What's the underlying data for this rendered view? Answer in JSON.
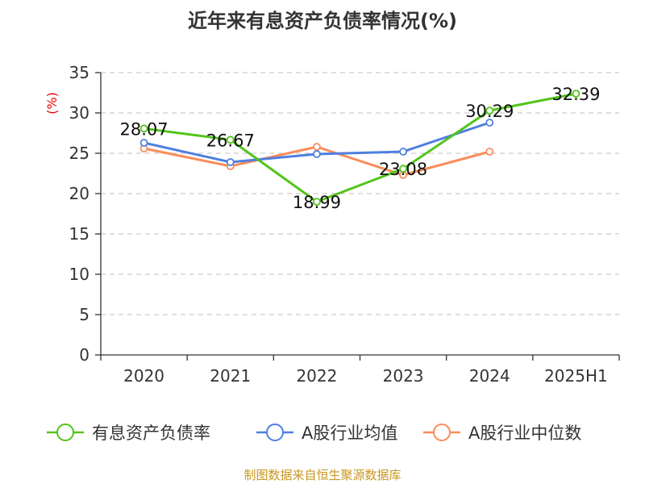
{
  "chart_data": {
    "type": "line",
    "title": "近年来有息资产负债率情况(%)",
    "ylabel": "(%)",
    "categories": [
      "2020",
      "2021",
      "2022",
      "2023",
      "2024",
      "2025H1"
    ],
    "ylim": [
      0,
      35
    ],
    "yticks": [
      0,
      5,
      10,
      15,
      20,
      25,
      30,
      35
    ],
    "grid": true,
    "legend_position": "bottom",
    "series": [
      {
        "name": "有息资产负债率",
        "color": "#52c41a",
        "values": [
          28.07,
          26.67,
          18.99,
          23.08,
          30.29,
          32.39
        ],
        "labels": [
          "28.07",
          "26.67",
          "18.99",
          "23.08",
          "30.29",
          "32.39"
        ]
      },
      {
        "name": "A股行业均值",
        "color": "#4f7fe0",
        "values": [
          26.3,
          23.9,
          24.9,
          25.2,
          28.8,
          null
        ]
      },
      {
        "name": "A股行业中位数",
        "color": "#fa8c5a",
        "values": [
          25.6,
          23.4,
          25.8,
          22.3,
          25.2,
          null
        ]
      }
    ]
  },
  "source": "制图数据来自恒生聚源数据库"
}
